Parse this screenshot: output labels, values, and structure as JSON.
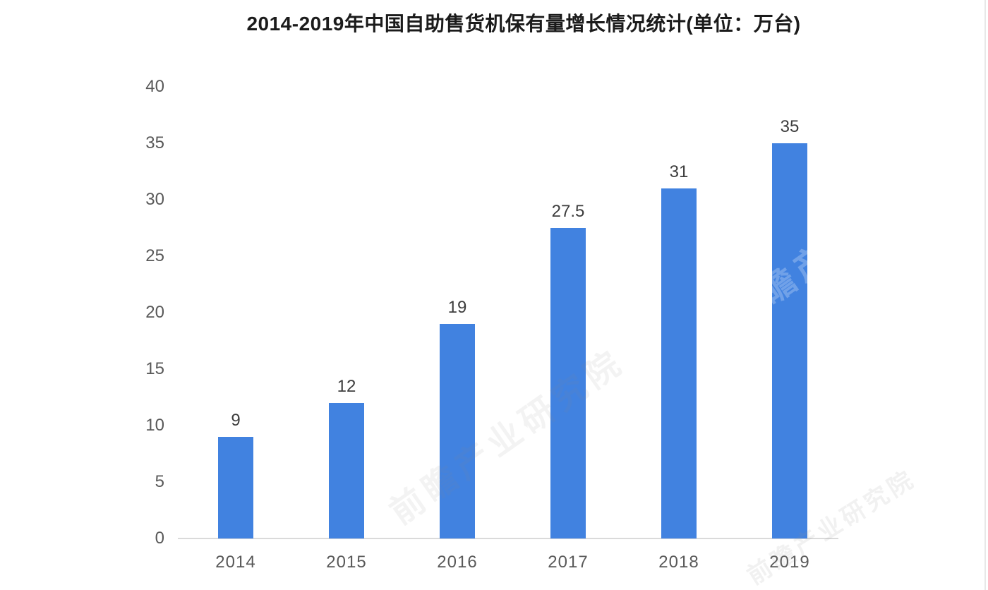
{
  "chart_data": {
    "type": "bar",
    "title": "2014-2019年中国自助售货机保有量增长情况统计(单位：万台)",
    "categories": [
      "2014",
      "2015",
      "2016",
      "2017",
      "2018",
      "2019"
    ],
    "values": [
      9,
      12,
      19,
      27.5,
      31,
      35
    ],
    "value_labels": [
      "9",
      "12",
      "19",
      "27.5",
      "31",
      "35"
    ],
    "unit": "万台",
    "xlabel": "",
    "ylabel": "",
    "ylim": [
      0,
      40
    ],
    "yticks": [
      0,
      5,
      10,
      15,
      20,
      25,
      30,
      35,
      40
    ],
    "grid": false,
    "legend_position": "none",
    "colors": {
      "bar": "#4182E0",
      "axis_line": "#DADADA",
      "tick_label": "#595959",
      "value_label": "#3D3D3D",
      "title": "#1B1B1B"
    }
  },
  "watermark": {
    "text": "前瞻产业研究院"
  }
}
